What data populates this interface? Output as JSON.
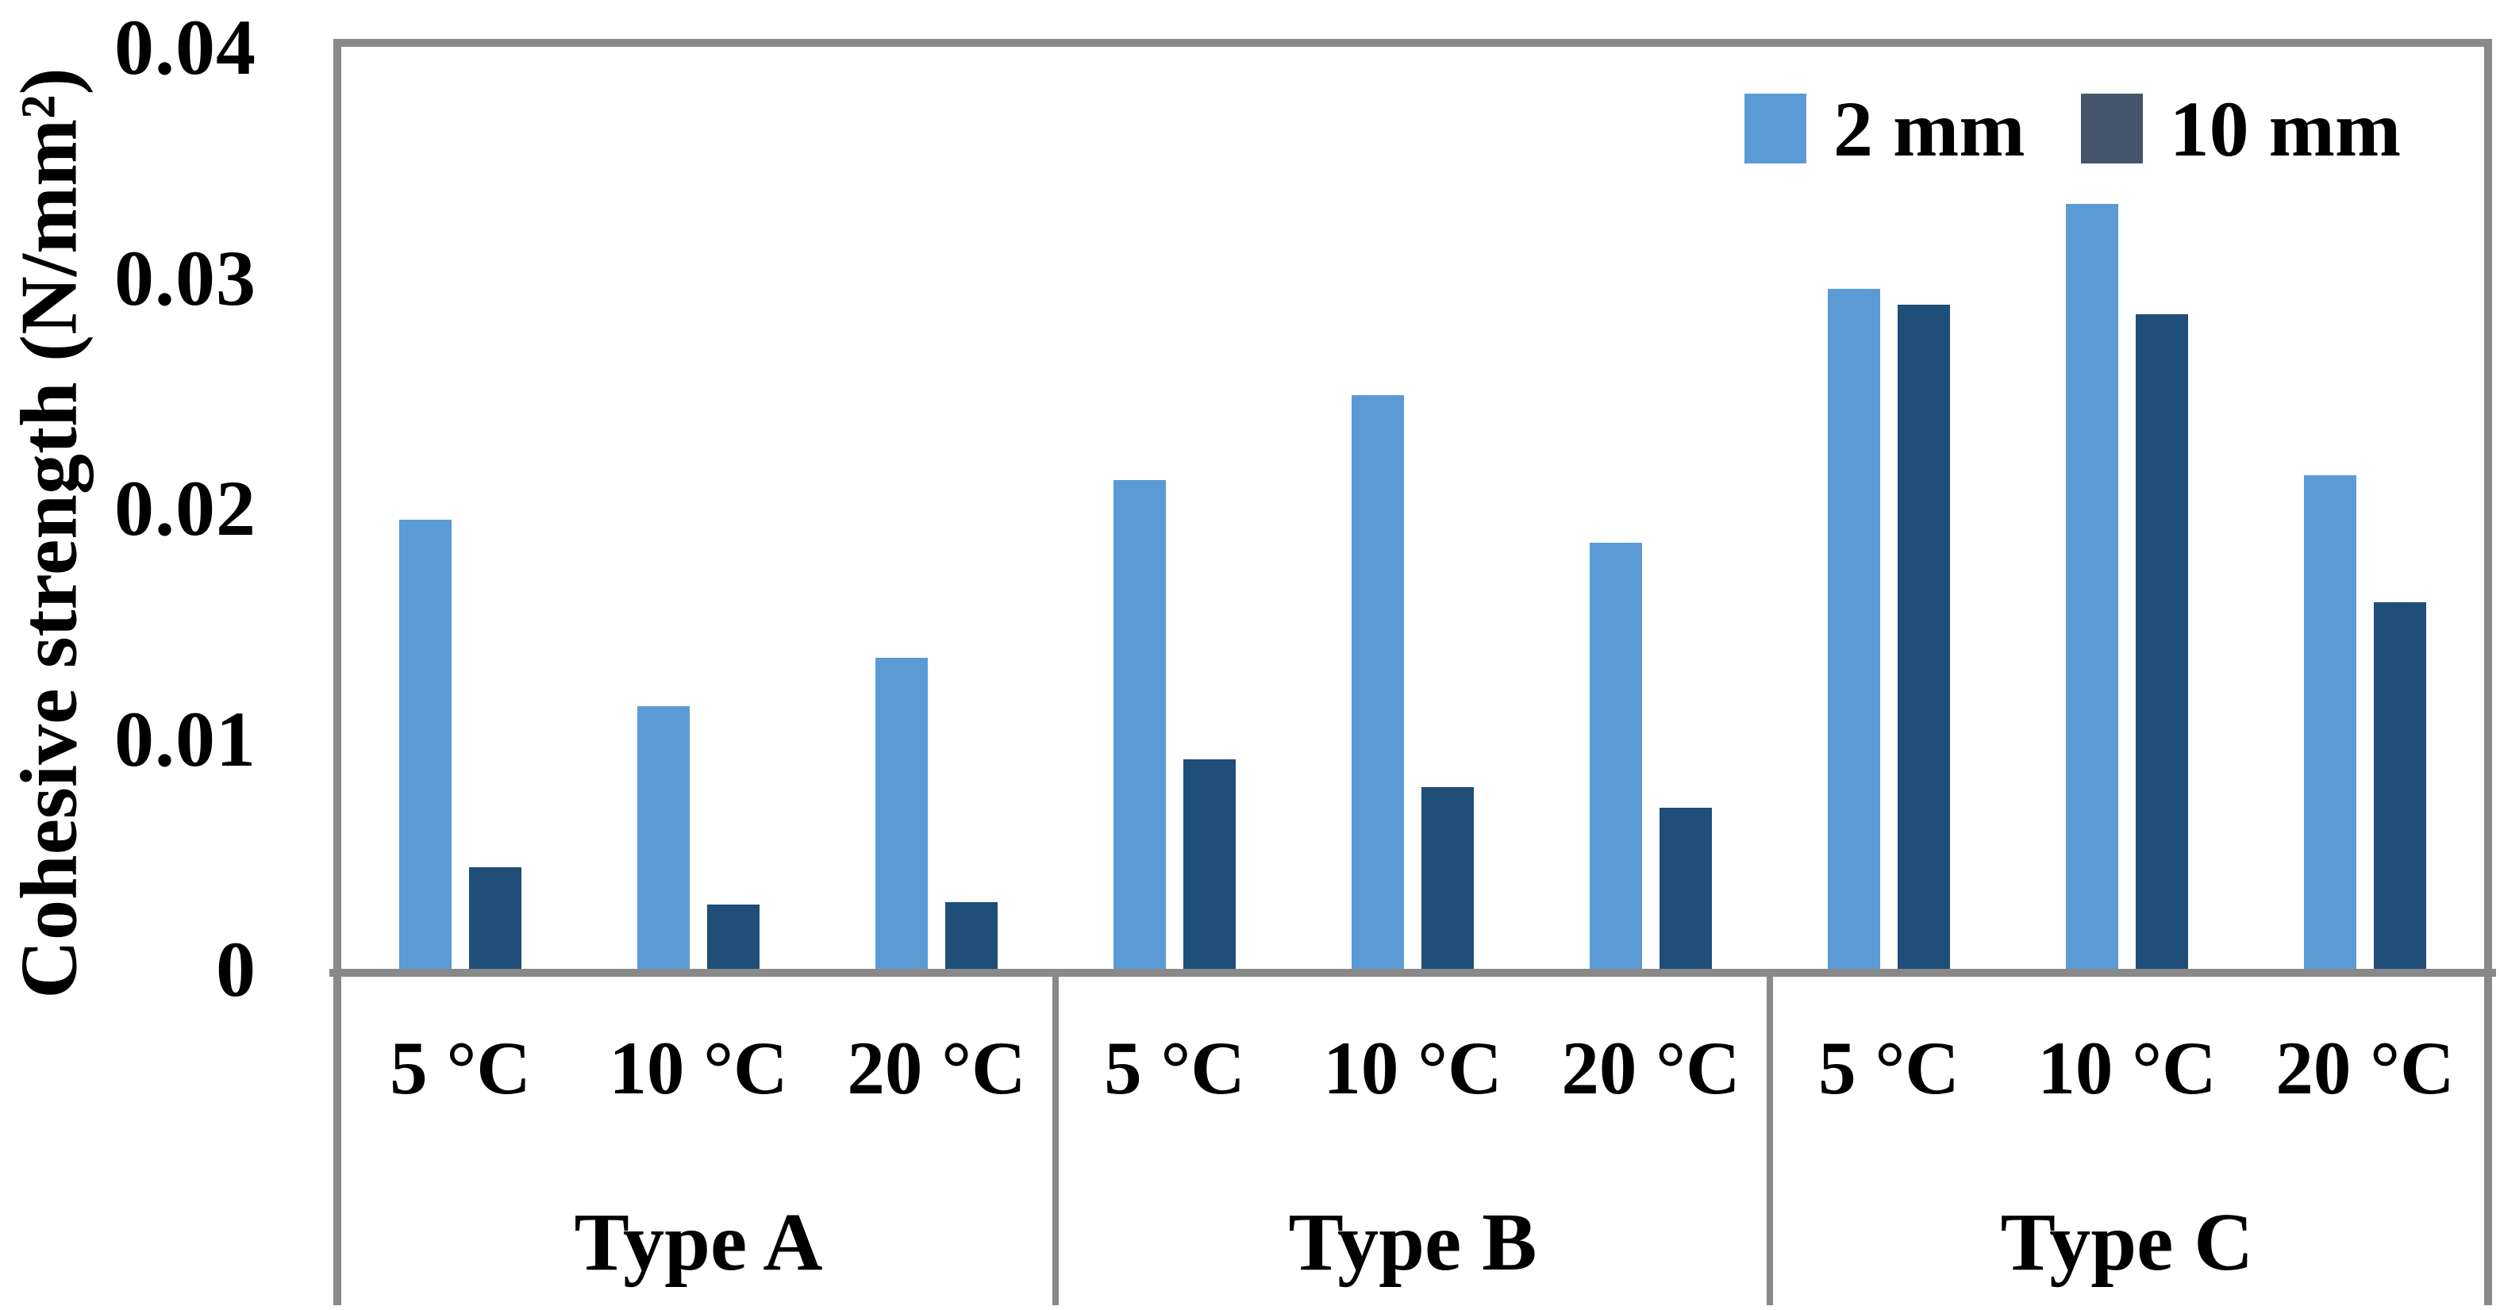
{
  "chart_data": {
    "type": "bar",
    "title": "",
    "ylabel": "Cohesive strength (N/mm²)",
    "xlabel": "",
    "ylim": [
      0,
      0.04
    ],
    "ytick_values": [
      0,
      0.01,
      0.02,
      0.03,
      0.04
    ],
    "ytick_labels": [
      "0",
      "0.01",
      "0.02",
      "0.03",
      "0.04"
    ],
    "grid": false,
    "legend_position": "top-right-inside",
    "groups": [
      {
        "label": "Type A",
        "categories": [
          "5 °C",
          "10 °C",
          "20 °C"
        ]
      },
      {
        "label": "Type B",
        "categories": [
          "5 °C",
          "10 °C",
          "20 °C"
        ]
      },
      {
        "label": "Type C",
        "categories": [
          "5 °C",
          "10 °C",
          "20 °C"
        ]
      }
    ],
    "series": [
      {
        "name": "2 mm",
        "color": "#5B9BD5",
        "legend_swatch_color": "#5B9BD5",
        "values": [
          0.0195,
          0.0114,
          0.0135,
          0.0212,
          0.0249,
          0.0185,
          0.0295,
          0.0332,
          0.0214
        ]
      },
      {
        "name": "10 mm",
        "color": "#1F4E79",
        "legend_swatch_color": "#44546A",
        "values": [
          0.0044,
          0.0028,
          0.0029,
          0.0091,
          0.0079,
          0.007,
          0.0288,
          0.0284,
          0.0159
        ]
      }
    ],
    "axis_color": "#898989",
    "text_color": "#000000",
    "plot_background": "#ffffff"
  }
}
